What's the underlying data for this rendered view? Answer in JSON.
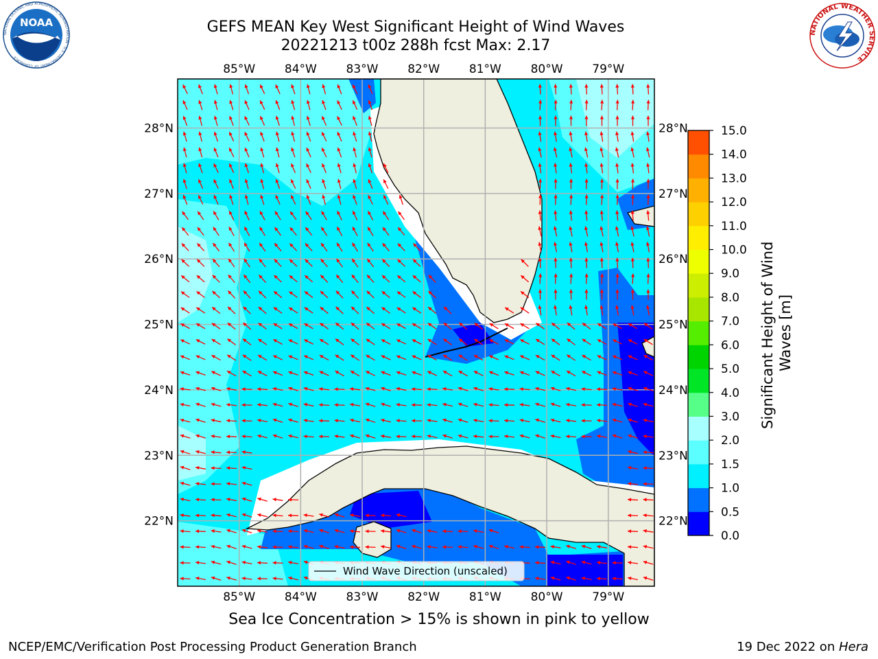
{
  "header": {
    "title_line1": "GEFS MEAN Key West Significant Height of Wind Waves",
    "title_line2": "20221213 t00z 288h fcst   Max: 2.17"
  },
  "logos": {
    "noaa_text": "NOAA",
    "noaa_ring": "NATIONAL OCEANIC AND ATMOSPHERIC ADMINISTRATION · U.S. DEPARTMENT OF COMMERCE",
    "nws_ring": "NATIONAL WEATHER SERVICE"
  },
  "map": {
    "lon_labels": [
      "85°W",
      "84°W",
      "83°W",
      "82°W",
      "81°W",
      "80°W",
      "79°W"
    ],
    "lon_values": [
      -85,
      -84,
      -83,
      -82,
      -81,
      -80,
      -79
    ],
    "lat_labels": [
      "28°N",
      "27°N",
      "26°N",
      "25°N",
      "24°N",
      "23°N",
      "22°N"
    ],
    "lat_values": [
      28,
      27,
      26,
      25,
      24,
      23,
      22
    ],
    "extent": {
      "lon_min": -86.0,
      "lon_max": -78.25,
      "lat_min": 21.0,
      "lat_max": 28.75
    },
    "legend_label": "Wind Wave Direction (unscaled)",
    "arrow_color": "#ff0000",
    "land_color": "#efefdf",
    "grid_color": "#b0b0b0"
  },
  "colorbar": {
    "title": "Significant Height of Wind Waves [m]",
    "tick_labels": [
      "0.0",
      "0.5",
      "1.0",
      "1.5",
      "2.0",
      "3.0",
      "4.0",
      "5.0",
      "6.0",
      "7.0",
      "8.0",
      "9.0",
      "10.0",
      "11.0",
      "12.0",
      "13.0",
      "14.0",
      "15.0"
    ],
    "colors": [
      "#0000ff",
      "#0072ff",
      "#00f0ff",
      "#5cffff",
      "#a8ffff",
      "#55ff88",
      "#00e627",
      "#00d400",
      "#55ee00",
      "#a8e600",
      "#ccee00",
      "#eeff00",
      "#ffee00",
      "#ffd000",
      "#ffb000",
      "#ff8a00",
      "#ff4f00",
      "#ff0000"
    ]
  },
  "footer": {
    "note": "Sea Ice Concentration > 15% is shown in pink to yellow",
    "left": "NCEP/EMC/Verification Post Processing Product Generation Branch",
    "right_date": "19 Dec 2022 on ",
    "right_host": "Hera"
  }
}
